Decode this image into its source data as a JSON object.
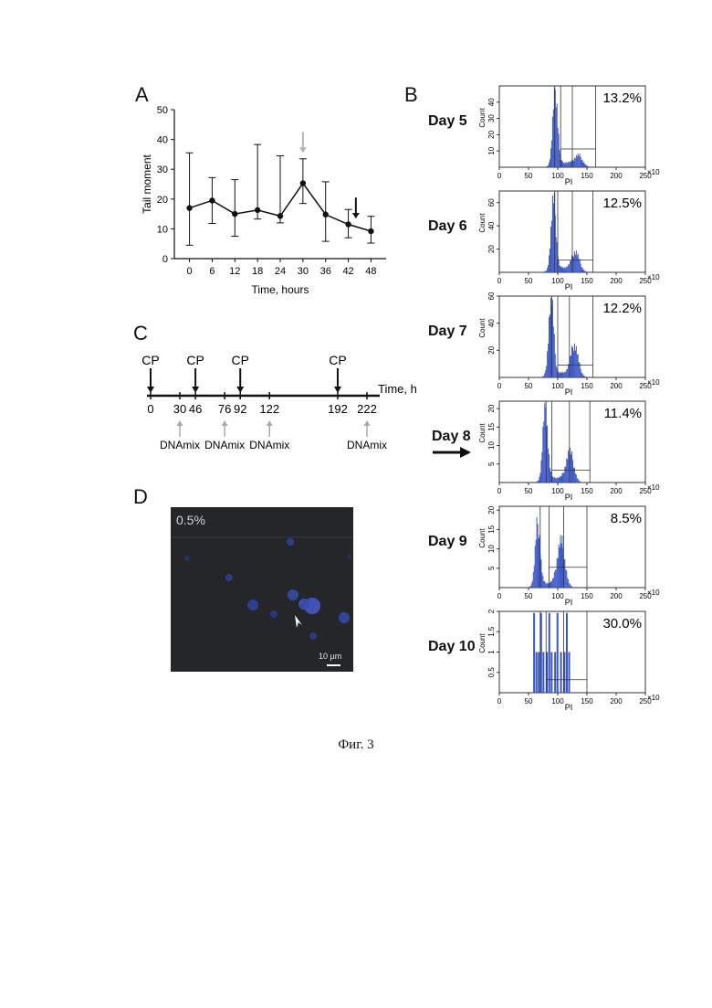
{
  "panels": {
    "a": "A",
    "b": "B",
    "c": "C",
    "d": "D"
  },
  "chart_data": [
    {
      "type": "line",
      "xlabel": "Time, hours",
      "ylabel": "Tail moment",
      "x": [
        0,
        6,
        12,
        18,
        24,
        30,
        36,
        42,
        48
      ],
      "xticks": [
        "0",
        "6",
        "12",
        "18",
        "24",
        "30",
        "36",
        "42",
        "48"
      ],
      "yticks": [
        "0",
        "10",
        "20",
        "30",
        "40",
        "50"
      ],
      "ylim": [
        0,
        50
      ],
      "series": [
        {
          "values": [
            17,
            19.5,
            15,
            16.3,
            14.3,
            25.3,
            14.8,
            11.5,
            9.2
          ],
          "err_high": [
            35.5,
            27.2,
            26.5,
            38.3,
            34.5,
            33.5,
            25.8,
            16.5,
            14.2
          ],
          "err_low": [
            4.5,
            11.8,
            7.5,
            13.3,
            12,
            18.5,
            5.8,
            7,
            5.2
          ]
        }
      ],
      "annotations": [
        {
          "x": 30,
          "marker": "arrow",
          "color": "#b5b5b5"
        },
        {
          "x": 44,
          "marker": "arrow",
          "color": "#111111"
        }
      ]
    },
    {
      "type": "histogram",
      "panel": "B",
      "xlabel": "PI",
      "ylabel": "Count",
      "x_unit": "×10",
      "xticks": [
        "0",
        "50",
        "100",
        "150",
        "200",
        "250"
      ],
      "xlim": [
        0,
        250
      ],
      "color": "#3a55c4",
      "histograms": [
        {
          "day": "Day 5",
          "percent": "13.2%",
          "ylim": [
            0,
            50
          ],
          "yticks": [
            "10",
            "20",
            "30",
            "40"
          ]
        },
        {
          "day": "Day 6",
          "percent": "12.5%",
          "ylim": [
            0,
            70
          ],
          "yticks": [
            "20",
            "40",
            "60"
          ]
        },
        {
          "day": "Day 7",
          "percent": "12.2%",
          "ylim": [
            0,
            60
          ],
          "yticks": [
            "20",
            "40",
            "60"
          ]
        },
        {
          "day": "Day 8",
          "percent": "11.4%",
          "ylim": [
            0,
            22
          ],
          "yticks": [
            "5",
            "10",
            "15",
            "20"
          ]
        },
        {
          "day": "Day 9",
          "percent": "8.5%",
          "ylim": [
            0,
            21
          ],
          "yticks": [
            "5",
            "10",
            "15",
            "20"
          ]
        },
        {
          "day": "Day 10",
          "percent": "30.0%",
          "ylim": [
            0,
            2
          ],
          "yticks": [
            "0.5",
            "1",
            "1.5",
            "2"
          ]
        }
      ]
    }
  ],
  "timeline": {
    "axis_label": "Time, h",
    "cp_label": "CP",
    "dnamix_label": "DNAmix",
    "cp_times": [
      0,
      46,
      92,
      192
    ],
    "dnamix_times": [
      30,
      76,
      122,
      222
    ],
    "ticks": [
      "0",
      "30",
      "46",
      "76",
      "92",
      "122",
      "192",
      "222"
    ],
    "tick_values": [
      0,
      30,
      46,
      76,
      92,
      122,
      192,
      222
    ]
  },
  "microscopy": {
    "percent": "0.5%",
    "scale_bar": "10 µm"
  },
  "caption": "Фиг. 3"
}
